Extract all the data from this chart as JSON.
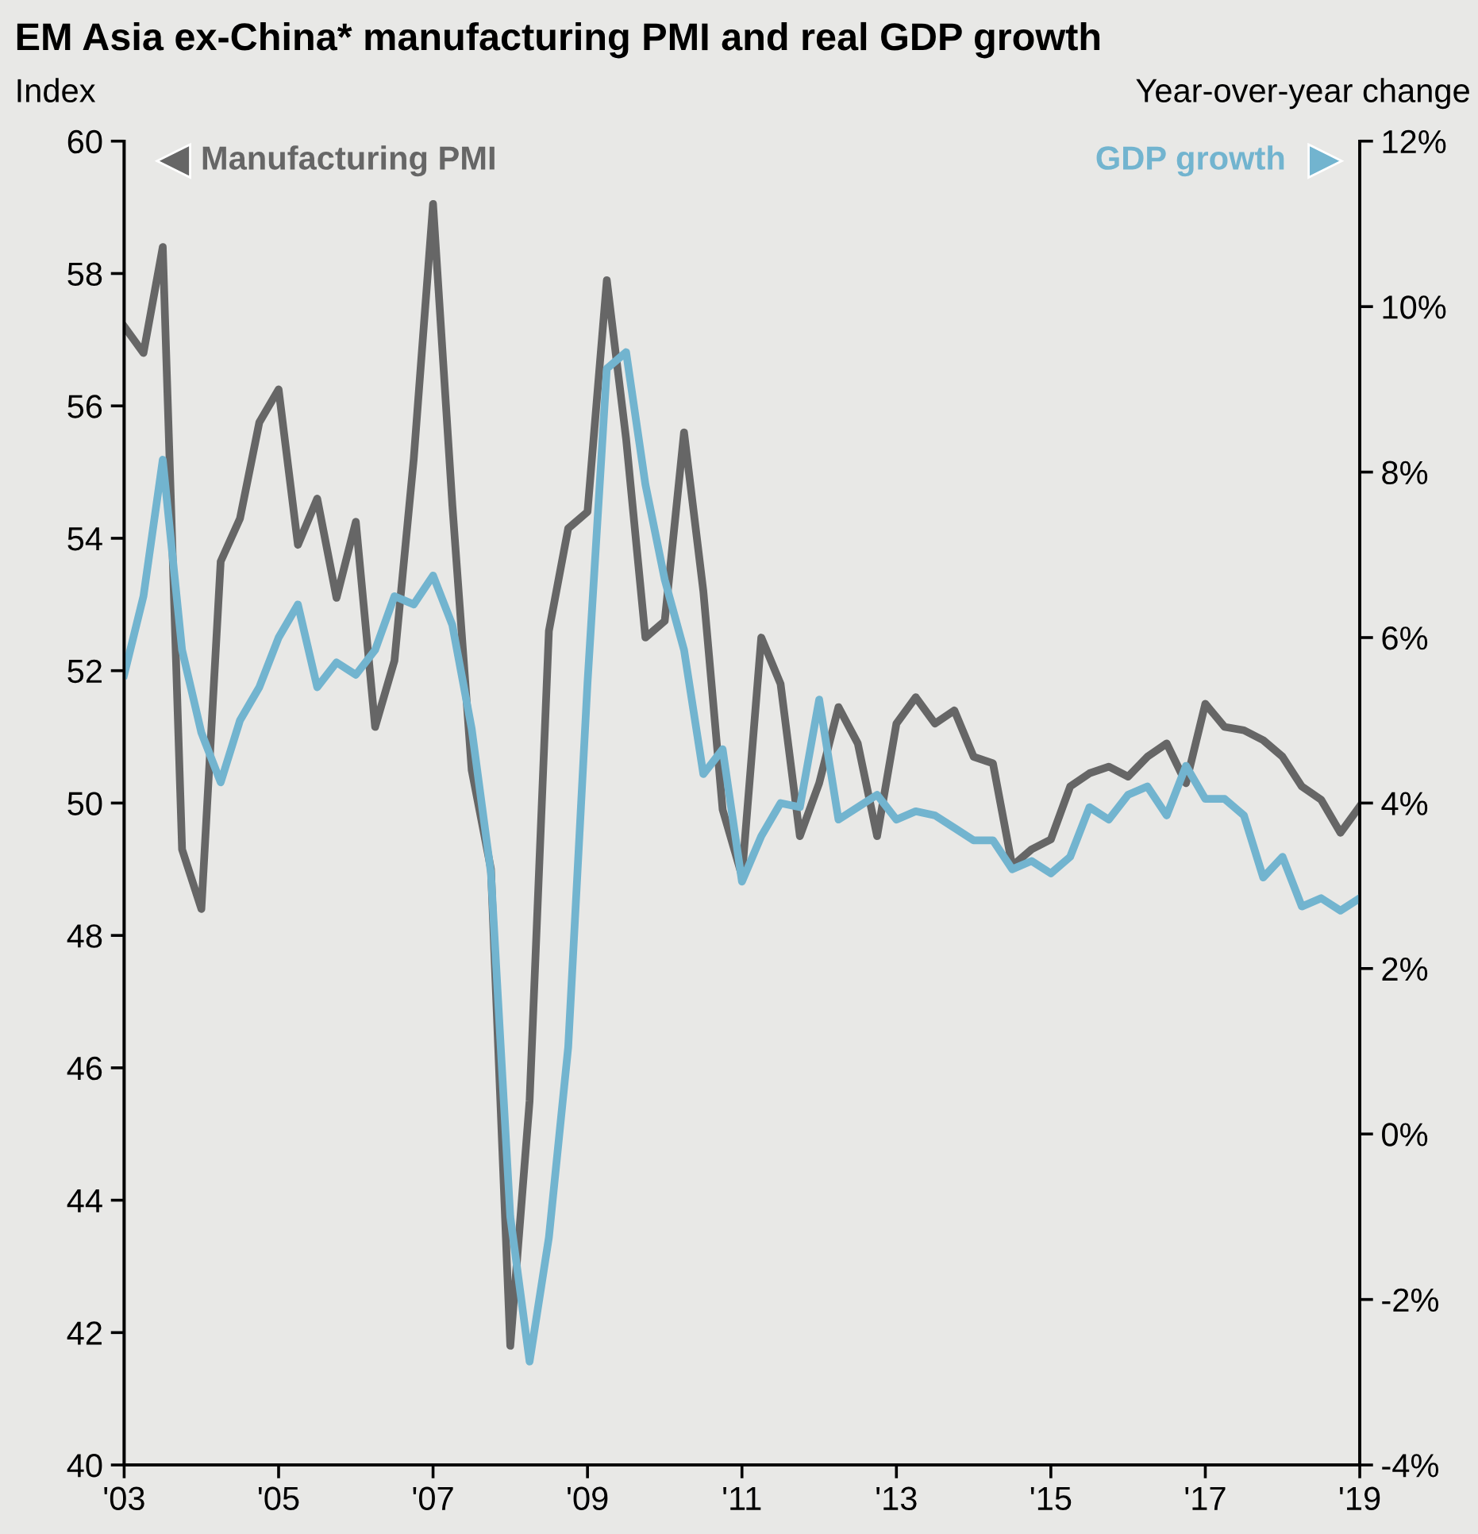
{
  "chart_data": {
    "type": "line",
    "title": "EM Asia ex-China* manufacturing PMI and real GDP growth",
    "ylabel": "Index",
    "y2label": "Year-over-year change",
    "x": [
      2003.0,
      2003.25,
      2003.5,
      2003.75,
      2004.0,
      2004.25,
      2004.5,
      2004.75,
      2005.0,
      2005.25,
      2005.5,
      2005.75,
      2006.0,
      2006.25,
      2006.5,
      2006.75,
      2007.0,
      2007.25,
      2007.5,
      2007.75,
      2008.0,
      2008.25,
      2008.5,
      2008.75,
      2009.0,
      2009.25,
      2009.5,
      2009.75,
      2010.0,
      2010.25,
      2010.5,
      2010.75,
      2011.0,
      2011.25,
      2011.5,
      2011.75,
      2012.0,
      2012.25,
      2012.5,
      2012.75,
      2013.0,
      2013.25,
      2013.5,
      2013.75,
      2014.0,
      2014.25,
      2014.5,
      2014.75,
      2015.0,
      2015.25,
      2015.5,
      2015.75,
      2016.0,
      2016.25,
      2016.5,
      2016.75,
      2017.0,
      2017.25,
      2017.5,
      2017.75,
      2018.0,
      2018.25,
      2018.5,
      2018.75,
      2019.0
    ],
    "series": [
      {
        "name": "Manufacturing PMI",
        "color": "#666666",
        "values": [
          57.2,
          56.8,
          58.4,
          49.3,
          48.4,
          53.65,
          54.3,
          55.75,
          56.25,
          53.9,
          54.6,
          53.1,
          54.25,
          51.15,
          52.15,
          55.2,
          59.05,
          54.5,
          50.5,
          49.0,
          41.8,
          45.5,
          52.6,
          54.15,
          54.4,
          57.9,
          55.5,
          52.5,
          52.75,
          55.6,
          53.2,
          49.9,
          48.9,
          52.5,
          51.8,
          49.5,
          50.3,
          51.45,
          50.9,
          49.5,
          51.2,
          51.6,
          51.2,
          51.4,
          50.7,
          50.6,
          49.05,
          49.3,
          49.45,
          50.25,
          50.45,
          50.55,
          50.4,
          50.7,
          50.9,
          50.3,
          51.5,
          51.15,
          51.1,
          50.95,
          50.7,
          50.25,
          50.05,
          49.55,
          49.95
        ]
      },
      {
        "name": "GDP growth",
        "color": "#72b4cf",
        "axis": "y2",
        "values": [
          5.55,
          6.5,
          8.15,
          5.85,
          4.85,
          4.25,
          5.0,
          5.4,
          6.0,
          6.4,
          5.4,
          5.7,
          5.55,
          5.85,
          6.5,
          6.4,
          6.75,
          6.15,
          4.9,
          3.15,
          -1.0,
          -2.75,
          -1.25,
          1.05,
          5.45,
          9.25,
          9.45,
          7.85,
          6.7,
          5.85,
          4.35,
          4.65,
          3.05,
          3.6,
          4.0,
          3.95,
          5.25,
          3.8,
          3.95,
          4.1,
          3.8,
          3.9,
          3.85,
          3.7,
          3.55,
          3.55,
          3.2,
          3.3,
          3.15,
          3.35,
          3.95,
          3.8,
          4.1,
          4.2,
          3.85,
          4.45,
          4.05,
          4.05,
          3.85,
          3.1,
          3.35,
          2.75,
          2.85,
          2.7,
          2.85
        ]
      }
    ],
    "xlim": [
      2003,
      2019
    ],
    "xticks": [
      {
        "value": 2003,
        "label": "'03"
      },
      {
        "value": 2005,
        "label": "'05"
      },
      {
        "value": 2007,
        "label": "'07"
      },
      {
        "value": 2009,
        "label": "'09"
      },
      {
        "value": 2011,
        "label": "'11"
      },
      {
        "value": 2013,
        "label": "'13"
      },
      {
        "value": 2015,
        "label": "'15"
      },
      {
        "value": 2017,
        "label": "'17"
      },
      {
        "value": 2019,
        "label": "'19"
      }
    ],
    "ylim": [
      40,
      60
    ],
    "yticks": [
      40,
      42,
      44,
      46,
      48,
      50,
      52,
      54,
      56,
      58,
      60
    ],
    "y2lim": [
      -4,
      12
    ],
    "y2ticks": [
      {
        "value": -4,
        "label": "-4%"
      },
      {
        "value": -2,
        "label": "-2%"
      },
      {
        "value": 0,
        "label": "0%"
      },
      {
        "value": 2,
        "label": "2%"
      },
      {
        "value": 4,
        "label": "4%"
      },
      {
        "value": 6,
        "label": "6%"
      },
      {
        "value": 8,
        "label": "8%"
      },
      {
        "value": 10,
        "label": "10%"
      },
      {
        "value": 12,
        "label": "12%"
      }
    ],
    "grid": false,
    "legend": "top",
    "line_style": "solid",
    "marker": "none"
  }
}
